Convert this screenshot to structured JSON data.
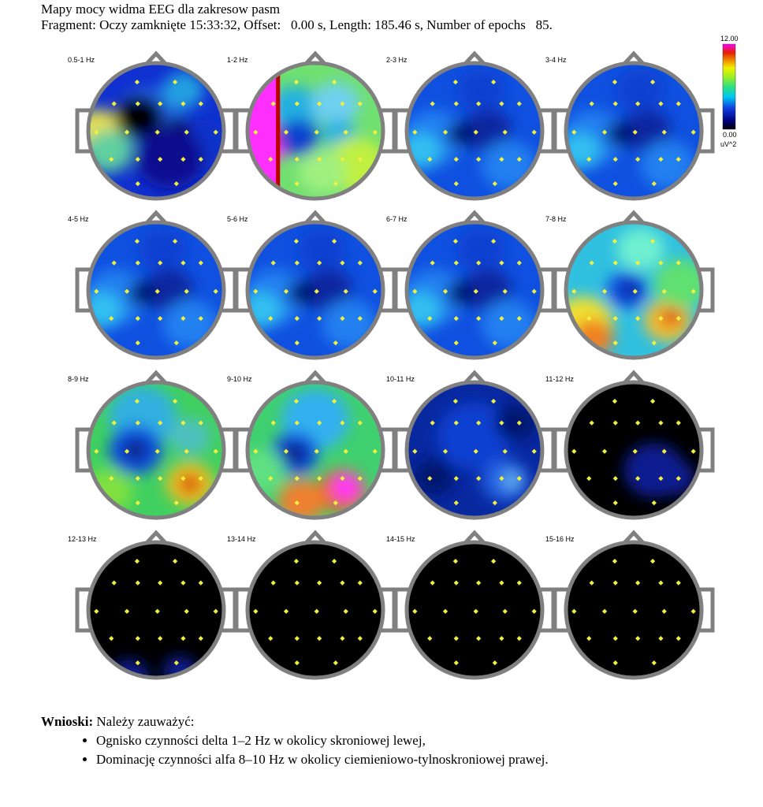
{
  "header": {
    "line1": "Mapy mocy widma EEG dla zakresow pasm",
    "line2": "Fragment: Oczy zamknięte 15:33:32, Offset:   0.00 s, Length: 185.46 s, Number of epochs   85."
  },
  "colorbar": {
    "max": "12.00",
    "min": "0.00",
    "unit": "uV^2"
  },
  "maps": [
    {
      "label": "0.5-1 Hz",
      "scheme": "deltaLow"
    },
    {
      "label": "1-2 Hz",
      "scheme": "delta"
    },
    {
      "label": "2-3 Hz",
      "scheme": "blue"
    },
    {
      "label": "3-4 Hz",
      "scheme": "blue"
    },
    {
      "label": "4-5 Hz",
      "scheme": "blue"
    },
    {
      "label": "5-6 Hz",
      "scheme": "blue"
    },
    {
      "label": "6-7 Hz",
      "scheme": "blue"
    },
    {
      "label": "7-8 Hz",
      "scheme": "alphaLow"
    },
    {
      "label": "8-9 Hz",
      "scheme": "alpha"
    },
    {
      "label": "9-10 Hz",
      "scheme": "alphaHigh"
    },
    {
      "label": "10-11 Hz",
      "scheme": "deepBlue"
    },
    {
      "label": "11-12 Hz",
      "scheme": "black"
    },
    {
      "label": "12-13 Hz",
      "scheme": "black"
    },
    {
      "label": "13-14 Hz",
      "scheme": "black"
    },
    {
      "label": "14-15 Hz",
      "scheme": "black"
    },
    {
      "label": "15-16 Hz",
      "scheme": "black"
    }
  ],
  "conclusions": {
    "heading": "Wnioski:",
    "intro": " Należy zauważyć:",
    "items": [
      "Ognisko czynności delta 1–2 Hz w okolicy skroniowej lewej,",
      "Dominację czynności alfa 8–10 Hz w okolicy ciemieniowo-tylnoskroniowej prawej."
    ]
  }
}
